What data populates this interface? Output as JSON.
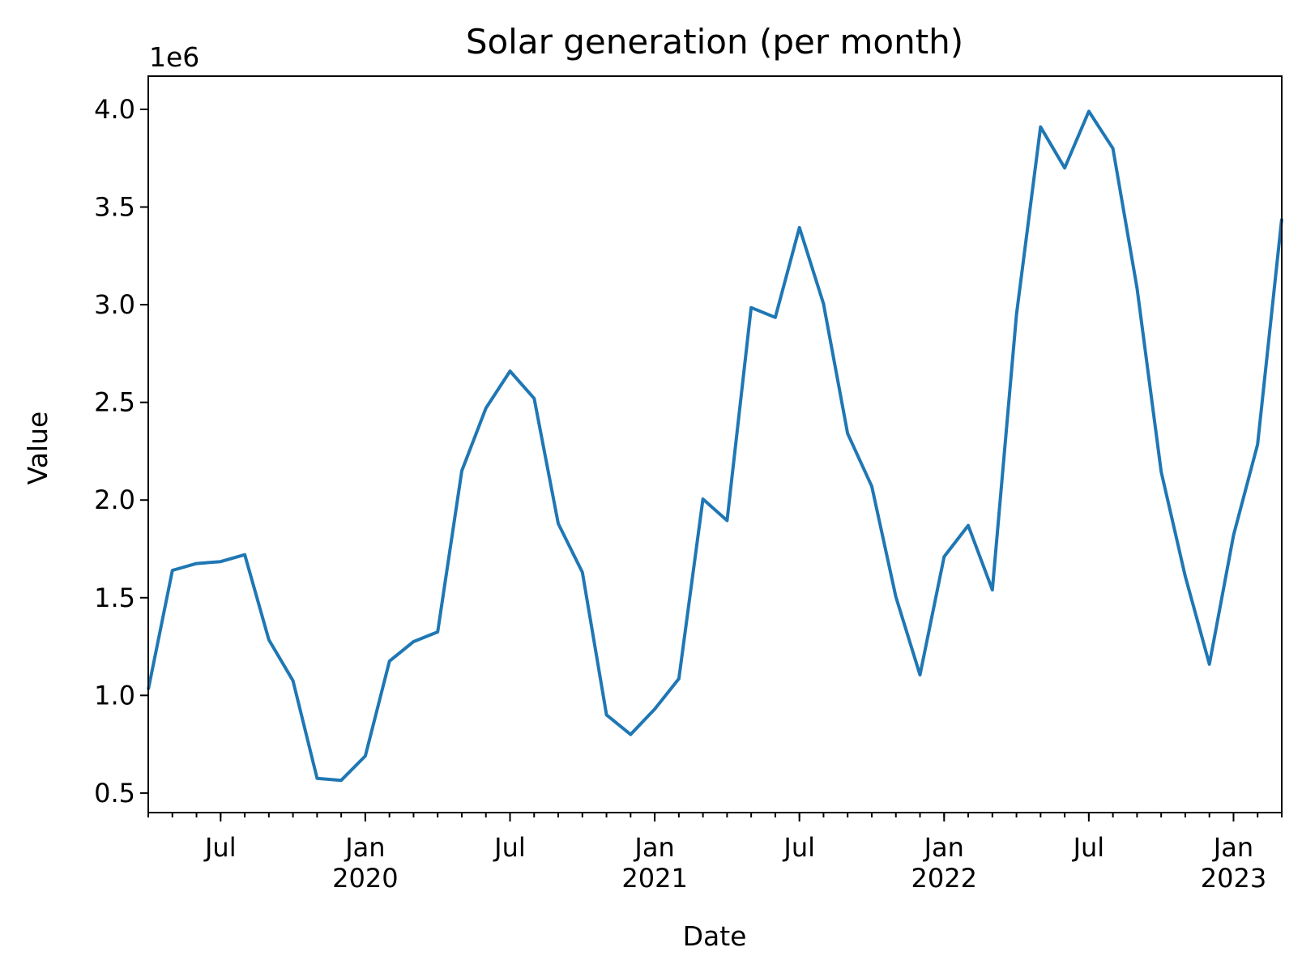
{
  "chart_data": {
    "type": "line",
    "title": "Solar generation (per month)",
    "xlabel": "Date",
    "ylabel": "Value",
    "y_offset_label": "1e6",
    "ylim": [
      0.4,
      4.17
    ],
    "xlim": [
      "2019-04",
      "2023-03"
    ],
    "grid": false,
    "color": "#1f77b4",
    "y_ticks": [
      {
        "value": 0.5,
        "label": "0.5"
      },
      {
        "value": 1.0,
        "label": "1.0"
      },
      {
        "value": 1.5,
        "label": "1.5"
      },
      {
        "value": 2.0,
        "label": "2.0"
      },
      {
        "value": 2.5,
        "label": "2.5"
      },
      {
        "value": 3.0,
        "label": "3.0"
      },
      {
        "value": 3.5,
        "label": "3.5"
      },
      {
        "value": 4.0,
        "label": "4.0"
      }
    ],
    "x_major_ticks": [
      {
        "date": "2019-07",
        "label": "Jul",
        "year": ""
      },
      {
        "date": "2020-01",
        "label": "Jan",
        "year": "2020"
      },
      {
        "date": "2020-07",
        "label": "Jul",
        "year": ""
      },
      {
        "date": "2021-01",
        "label": "Jan",
        "year": "2021"
      },
      {
        "date": "2021-07",
        "label": "Jul",
        "year": ""
      },
      {
        "date": "2022-01",
        "label": "Jan",
        "year": "2022"
      },
      {
        "date": "2022-07",
        "label": "Jul",
        "year": ""
      },
      {
        "date": "2023-01",
        "label": "Jan",
        "year": "2023"
      }
    ],
    "series": [
      {
        "x": [
          "2019-04",
          "2019-05",
          "2019-06",
          "2019-07",
          "2019-08",
          "2019-09",
          "2019-10",
          "2019-11",
          "2019-12",
          "2020-01",
          "2020-02",
          "2020-03",
          "2020-04",
          "2020-05",
          "2020-06",
          "2020-07",
          "2020-08",
          "2020-09",
          "2020-10",
          "2020-11",
          "2020-12",
          "2021-01",
          "2021-02",
          "2021-03",
          "2021-04",
          "2021-05",
          "2021-06",
          "2021-07",
          "2021-08",
          "2021-09",
          "2021-10",
          "2021-11",
          "2021-12",
          "2022-01",
          "2022-02",
          "2022-03",
          "2022-04",
          "2022-05",
          "2022-06",
          "2022-07",
          "2022-08",
          "2022-09",
          "2022-10",
          "2022-11",
          "2022-12",
          "2023-01",
          "2023-02",
          "2023-03"
        ],
        "values": [
          1.03,
          1.64,
          1.675,
          1.685,
          1.72,
          1.285,
          1.075,
          0.575,
          0.565,
          0.69,
          1.175,
          1.275,
          1.325,
          2.15,
          2.47,
          2.66,
          2.52,
          1.88,
          1.63,
          0.9,
          0.8,
          0.93,
          1.085,
          2.005,
          1.895,
          2.985,
          2.935,
          3.395,
          3.005,
          2.34,
          2.07,
          1.505,
          1.105,
          1.71,
          1.87,
          1.54,
          2.95,
          3.91,
          3.7,
          3.99,
          3.8,
          3.085,
          2.145,
          1.61,
          1.16,
          1.82,
          2.285,
          3.44
        ]
      }
    ]
  }
}
